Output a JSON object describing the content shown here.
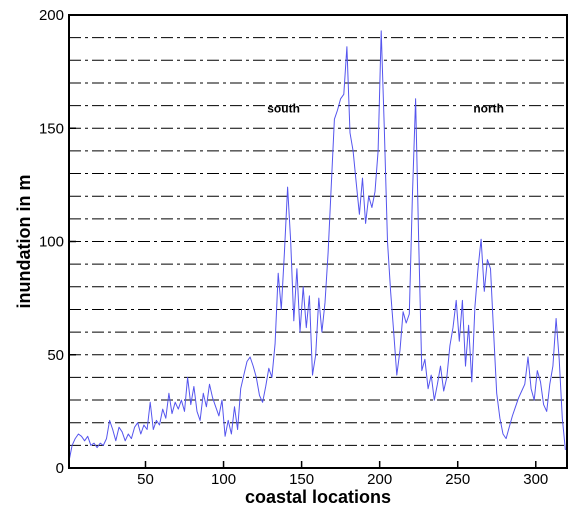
{
  "chart_data": {
    "type": "line",
    "title": "",
    "xlabel": "coastal locations",
    "ylabel": "inundation in m",
    "xlim": [
      1,
      320
    ],
    "ylim": [
      0,
      200
    ],
    "x_ticks": [
      50,
      100,
      150,
      200,
      250,
      300
    ],
    "y_ticks": [
      0,
      50,
      100,
      150,
      200
    ],
    "grid": "horizontal dash-dot lines every 10 m",
    "reference_lines_y": [
      10,
      20,
      30,
      40,
      50,
      60,
      70,
      80,
      90,
      100,
      110,
      120,
      130,
      140,
      150,
      160,
      170,
      180,
      190
    ],
    "annotations": [
      {
        "text": "south",
        "x": 128,
        "y": 157
      },
      {
        "text": "north",
        "x": 260,
        "y": 157
      }
    ],
    "series": [
      {
        "color": "#5555ee",
        "points": [
          [
            1,
            3
          ],
          [
            3,
            10
          ],
          [
            5,
            13
          ],
          [
            7,
            15
          ],
          [
            9,
            14
          ],
          [
            11,
            12
          ],
          [
            13,
            14
          ],
          [
            15,
            10
          ],
          [
            17,
            11
          ],
          [
            19,
            9
          ],
          [
            21,
            11
          ],
          [
            23,
            10
          ],
          [
            25,
            13
          ],
          [
            27,
            21
          ],
          [
            29,
            17
          ],
          [
            31,
            12
          ],
          [
            33,
            18
          ],
          [
            35,
            16
          ],
          [
            37,
            12
          ],
          [
            39,
            15
          ],
          [
            41,
            13
          ],
          [
            43,
            18
          ],
          [
            45,
            20
          ],
          [
            47,
            15
          ],
          [
            49,
            19
          ],
          [
            51,
            17
          ],
          [
            53,
            29
          ],
          [
            55,
            17
          ],
          [
            57,
            21
          ],
          [
            59,
            19
          ],
          [
            61,
            26
          ],
          [
            63,
            22
          ],
          [
            65,
            33
          ],
          [
            67,
            24
          ],
          [
            69,
            29
          ],
          [
            71,
            26
          ],
          [
            73,
            30
          ],
          [
            75,
            25
          ],
          [
            77,
            40
          ],
          [
            79,
            28
          ],
          [
            81,
            36
          ],
          [
            83,
            25
          ],
          [
            85,
            21
          ],
          [
            87,
            33
          ],
          [
            89,
            27
          ],
          [
            91,
            37
          ],
          [
            93,
            31
          ],
          [
            95,
            27
          ],
          [
            97,
            23
          ],
          [
            99,
            30
          ],
          [
            101,
            14
          ],
          [
            103,
            21
          ],
          [
            105,
            15
          ],
          [
            107,
            27
          ],
          [
            109,
            17
          ],
          [
            111,
            35
          ],
          [
            113,
            41
          ],
          [
            115,
            47
          ],
          [
            117,
            49
          ],
          [
            119,
            45
          ],
          [
            121,
            40
          ],
          [
            123,
            32
          ],
          [
            125,
            29
          ],
          [
            127,
            36
          ],
          [
            129,
            44
          ],
          [
            131,
            40
          ],
          [
            133,
            55
          ],
          [
            135,
            86
          ],
          [
            137,
            70
          ],
          [
            139,
            95
          ],
          [
            141,
            124
          ],
          [
            143,
            100
          ],
          [
            145,
            65
          ],
          [
            147,
            88
          ],
          [
            149,
            60
          ],
          [
            151,
            80
          ],
          [
            153,
            62
          ],
          [
            155,
            76
          ],
          [
            157,
            41
          ],
          [
            159,
            50
          ],
          [
            161,
            75
          ],
          [
            163,
            60
          ],
          [
            165,
            73
          ],
          [
            167,
            95
          ],
          [
            169,
            125
          ],
          [
            171,
            154
          ],
          [
            173,
            158
          ],
          [
            175,
            163
          ],
          [
            177,
            165
          ],
          [
            179,
            186
          ],
          [
            181,
            148
          ],
          [
            183,
            140
          ],
          [
            185,
            126
          ],
          [
            187,
            112
          ],
          [
            189,
            128
          ],
          [
            191,
            108
          ],
          [
            193,
            120
          ],
          [
            195,
            115
          ],
          [
            197,
            122
          ],
          [
            199,
            140
          ],
          [
            201,
            193
          ],
          [
            203,
            150
          ],
          [
            205,
            100
          ],
          [
            207,
            78
          ],
          [
            209,
            60
          ],
          [
            211,
            41
          ],
          [
            213,
            52
          ],
          [
            215,
            69
          ],
          [
            217,
            64
          ],
          [
            219,
            68
          ],
          [
            221,
            120
          ],
          [
            223,
            163
          ],
          [
            225,
            100
          ],
          [
            227,
            43
          ],
          [
            229,
            48
          ],
          [
            231,
            35
          ],
          [
            233,
            41
          ],
          [
            235,
            30
          ],
          [
            237,
            37
          ],
          [
            239,
            45
          ],
          [
            241,
            34
          ],
          [
            243,
            40
          ],
          [
            245,
            54
          ],
          [
            247,
            62
          ],
          [
            249,
            74
          ],
          [
            251,
            56
          ],
          [
            253,
            74
          ],
          [
            255,
            45
          ],
          [
            257,
            63
          ],
          [
            259,
            38
          ],
          [
            261,
            71
          ],
          [
            263,
            88
          ],
          [
            265,
            101
          ],
          [
            267,
            78
          ],
          [
            269,
            92
          ],
          [
            271,
            88
          ],
          [
            273,
            60
          ],
          [
            275,
            33
          ],
          [
            277,
            22
          ],
          [
            279,
            15
          ],
          [
            281,
            13
          ],
          [
            283,
            18
          ],
          [
            285,
            23
          ],
          [
            287,
            27
          ],
          [
            289,
            31
          ],
          [
            291,
            34
          ],
          [
            293,
            37
          ],
          [
            295,
            49
          ],
          [
            297,
            35
          ],
          [
            299,
            30
          ],
          [
            301,
            43
          ],
          [
            303,
            38
          ],
          [
            305,
            28
          ],
          [
            307,
            25
          ],
          [
            309,
            37
          ],
          [
            311,
            45
          ],
          [
            313,
            66
          ],
          [
            315,
            48
          ],
          [
            317,
            22
          ],
          [
            319,
            8
          ]
        ]
      }
    ]
  }
}
